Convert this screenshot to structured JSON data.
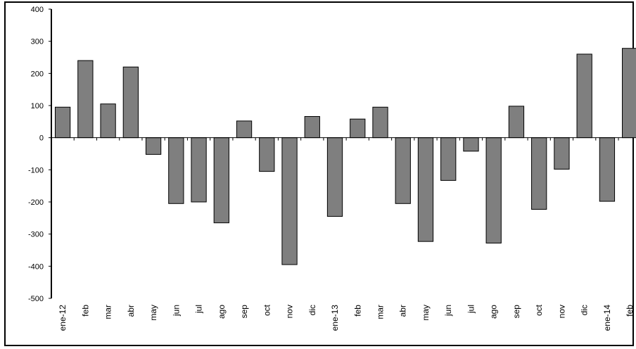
{
  "chart_data": {
    "type": "bar",
    "title": "",
    "xlabel": "",
    "ylabel": "",
    "ylim": [
      -500,
      400
    ],
    "yticks": [
      400,
      300,
      200,
      100,
      0,
      -100,
      -200,
      -300,
      -400,
      -500
    ],
    "grid": false,
    "categories": [
      "ene-12",
      "feb",
      "mar",
      "abr",
      "may",
      "jun",
      "jul",
      "ago",
      "sep",
      "oct",
      "nov",
      "dic",
      "ene-13",
      "feb",
      "mar",
      "abr",
      "may",
      "jun",
      "jul",
      "ago",
      "sep",
      "oct",
      "nov",
      "dic",
      "ene-14",
      "feb"
    ],
    "values": [
      95,
      240,
      105,
      220,
      -52,
      -205,
      -200,
      -265,
      52,
      -105,
      -395,
      66,
      -245,
      58,
      95,
      -205,
      -323,
      -133,
      -42,
      -328,
      98,
      -223,
      -98,
      260,
      -198,
      278
    ],
    "colors": {
      "bar_fill": "#7f7f7f",
      "bar_stroke": "#000000",
      "axis": "#000000"
    }
  }
}
